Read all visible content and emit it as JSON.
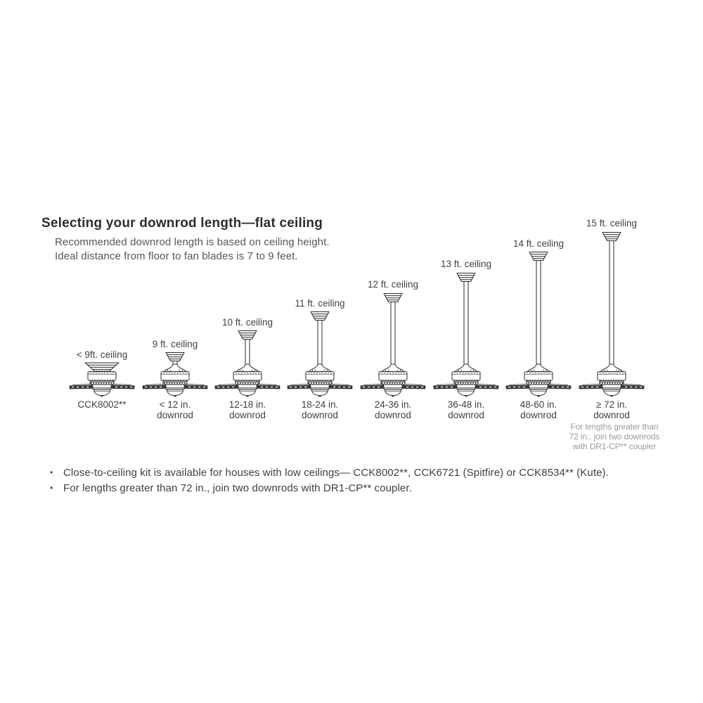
{
  "header": {
    "title": "Selecting your downrod length—flat ceiling",
    "subtitle_line1": "Recommended downrod length is based on ceiling height.",
    "subtitle_line2": "Ideal distance from floor to fan blades is 7 to 9 feet."
  },
  "fans": [
    {
      "ceiling_label": "< 9ft. ceiling",
      "downrod_line1": "CCK8002**",
      "downrod_line2": ""
    },
    {
      "ceiling_label": "9 ft. ceiling",
      "downrod_line1": "< 12 in.",
      "downrod_line2": "downrod"
    },
    {
      "ceiling_label": "10 ft. ceiling",
      "downrod_line1": "12-18 in.",
      "downrod_line2": "downrod"
    },
    {
      "ceiling_label": "11 ft. ceiling",
      "downrod_line1": "18-24 in.",
      "downrod_line2": "downrod"
    },
    {
      "ceiling_label": "12 ft. ceiling",
      "downrod_line1": "24-36 in.",
      "downrod_line2": "downrod"
    },
    {
      "ceiling_label": "13 ft. ceiling",
      "downrod_line1": "36-48 in.",
      "downrod_line2": "downrod"
    },
    {
      "ceiling_label": "14 ft. ceiling",
      "downrod_line1": "48-60 in.",
      "downrod_line2": "downrod"
    },
    {
      "ceiling_label": "15 ft. ceiling",
      "downrod_line1": "≥ 72 in.",
      "downrod_line2": "downrod"
    }
  ],
  "coupler_note": {
    "line1": "For lengths greater than",
    "line2": "72 in., join two downrods",
    "line3": "with DR1-CP** coupler"
  },
  "bullets": [
    "Close-to-ceiling kit is available for houses with low ceilings— CCK8002**, CCK6721 (Spitfire) or CCK8534** (Kute).",
    "For lengths greater than 72 in., join two downrods with DR1-CP** coupler."
  ],
  "colors": {
    "line_art_ink": "#2b2b2b",
    "text_dark": "#3f4042",
    "text_gray": "#55565a",
    "note_gray": "#97999c",
    "background": "#ffffff"
  }
}
